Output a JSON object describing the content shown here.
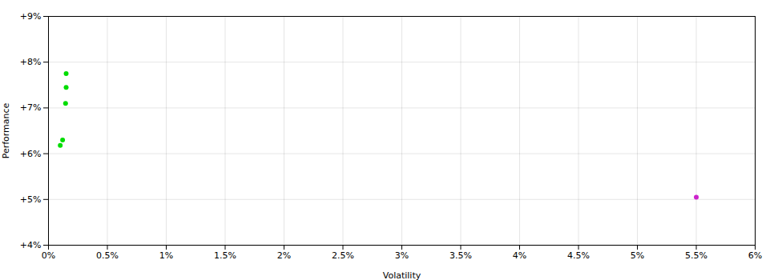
{
  "chart_data": {
    "type": "scatter",
    "xlabel": "Volatility",
    "ylabel": "Performance",
    "series": [
      {
        "color": "#00dd00",
        "x": [
          0.15,
          0.15,
          0.145,
          0.12,
          0.1
        ],
        "y": [
          7.75,
          7.45,
          7.1,
          6.3,
          6.18
        ]
      },
      {
        "color": "#cc22cc",
        "x": [
          5.5
        ],
        "y": [
          5.05
        ]
      }
    ],
    "xlim": [
      0,
      6.0
    ],
    "ylim": [
      4.0,
      9.0
    ],
    "xticks": [
      {
        "value": 0,
        "label": "0%"
      },
      {
        "value": 0.5,
        "label": "0.5%"
      },
      {
        "value": 1,
        "label": "1%"
      },
      {
        "value": 1.5,
        "label": "1.5%"
      },
      {
        "value": 2,
        "label": "2%"
      },
      {
        "value": 2.5,
        "label": "2.5%"
      },
      {
        "value": 3,
        "label": "3%"
      },
      {
        "value": 3.5,
        "label": "3.5%"
      },
      {
        "value": 4,
        "label": "4%"
      },
      {
        "value": 4.5,
        "label": "4.5%"
      },
      {
        "value": 5,
        "label": "5%"
      },
      {
        "value": 5.5,
        "label": "5.5%"
      },
      {
        "value": 6,
        "label": "6%"
      }
    ],
    "yticks": [
      {
        "value": 4,
        "label": "+4%"
      },
      {
        "value": 5,
        "label": "+5%"
      },
      {
        "value": 6,
        "label": "+6%"
      },
      {
        "value": 7,
        "label": "+7%"
      },
      {
        "value": 8,
        "label": "+8%"
      },
      {
        "value": 9,
        "label": "+9%"
      }
    ],
    "grid": true
  }
}
